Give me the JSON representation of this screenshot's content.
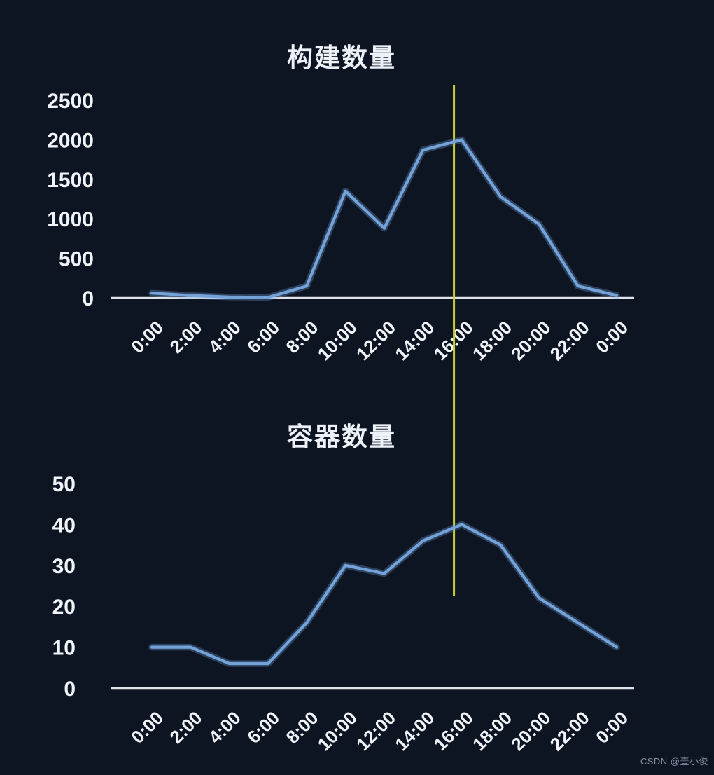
{
  "page": {
    "background": "#0d1422",
    "watermark": "CSDN @壹小俊"
  },
  "time_marker": {
    "at_hour": 15.6,
    "color": "#c9d02c"
  },
  "chart_data": [
    {
      "type": "line",
      "title": "构建数量",
      "categories": [
        "0:00",
        "2:00",
        "4:00",
        "6:00",
        "8:00",
        "10:00",
        "12:00",
        "14:00",
        "16:00",
        "18:00",
        "20:00",
        "22:00",
        "0:00"
      ],
      "values": [
        60,
        30,
        10,
        5,
        150,
        1350,
        880,
        1870,
        2000,
        1280,
        930,
        150,
        30
      ],
      "xlabel": "",
      "ylabel": "",
      "y_ticks": [
        0,
        500,
        1000,
        1500,
        2000,
        2500
      ],
      "ylim": [
        0,
        2680
      ],
      "grid": false,
      "legend": "none",
      "line_color": "#74a3da",
      "axis_color": "#dfe3ea",
      "annotations": [
        {
          "type": "vline",
          "x_hour": 15.6,
          "color": "#c9d02c"
        }
      ]
    },
    {
      "type": "line",
      "title": "容器数量",
      "categories": [
        "0:00",
        "2:00",
        "4:00",
        "6:00",
        "8:00",
        "10:00",
        "12:00",
        "14:00",
        "16:00",
        "18:00",
        "20:00",
        "22:00",
        "0:00"
      ],
      "values": [
        10,
        10,
        6,
        6,
        16,
        30,
        28,
        36,
        40,
        35,
        22,
        16,
        10
      ],
      "xlabel": "",
      "ylabel": "",
      "y_ticks": [
        0,
        10,
        20,
        30,
        40,
        50
      ],
      "ylim": [
        0,
        57
      ],
      "grid": false,
      "legend": "none",
      "line_color": "#74a3da",
      "axis_color": "#dfe3ea",
      "annotations": [
        {
          "type": "vline",
          "x_hour": 15.6,
          "color": "#c9d02c"
        }
      ]
    }
  ]
}
